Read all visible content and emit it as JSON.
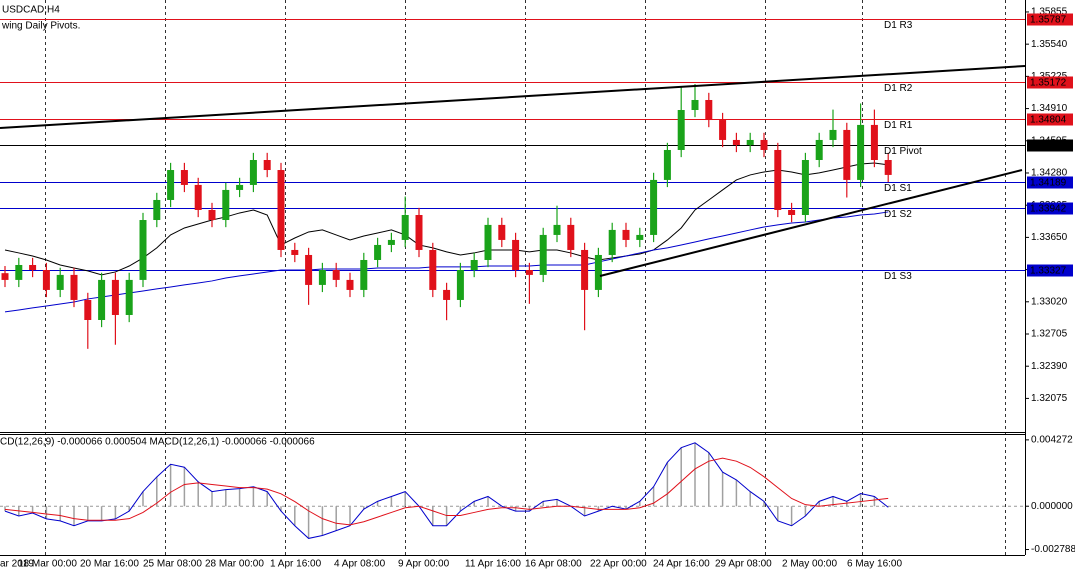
{
  "chart_data": [
    {
      "type": "candlestick",
      "title": "USDCAD,H4",
      "subtitle": "wing Daily Pivots.",
      "up_color": "#1aa31a",
      "down_color": "#e0111b",
      "open": [
        1.333,
        1.33234,
        1.3338,
        1.33331,
        1.33136,
        1.33283,
        1.33038,
        1.32842,
        1.33234,
        1.32891,
        1.33234,
        1.3382,
        1.34016,
        1.34309,
        1.34163,
        1.33918,
        1.3382,
        1.34114,
        1.34163,
        1.34407,
        1.34309,
        1.33527,
        1.33478,
        1.33185,
        1.33331,
        1.33234,
        1.33136,
        1.33429,
        1.33576,
        1.33625,
        1.33869,
        1.33527,
        1.33136,
        1.33038,
        1.33331,
        1.33429,
        1.33772,
        1.33625,
        1.33331,
        1.33283,
        1.33674,
        1.33772,
        1.33527,
        1.33136,
        1.33478,
        1.33723,
        1.33625,
        1.33674,
        1.34212,
        1.34505,
        1.34896,
        1.34994,
        1.34798,
        1.34603,
        1.34554,
        1.34603,
        1.34505,
        1.33918,
        1.33869,
        1.34407,
        1.34603,
        1.34701,
        1.34212,
        1.3475,
        1.34407
      ],
      "high": [
        1.3337,
        1.3345,
        1.3345,
        1.33401,
        1.33353,
        1.33353,
        1.33108,
        1.33304,
        1.33304,
        1.33304,
        1.3389,
        1.34086,
        1.34379,
        1.34379,
        1.34233,
        1.33988,
        1.34184,
        1.34233,
        1.34477,
        1.34477,
        1.34379,
        1.33597,
        1.33548,
        1.33401,
        1.33401,
        1.33304,
        1.33499,
        1.33646,
        1.33695,
        1.3405,
        1.33939,
        1.33597,
        1.33206,
        1.33401,
        1.33499,
        1.33842,
        1.33842,
        1.33695,
        1.33401,
        1.33744,
        1.3396,
        1.33842,
        1.33597,
        1.33548,
        1.33793,
        1.33793,
        1.33744,
        1.34282,
        1.34575,
        1.3512,
        1.3515,
        1.35064,
        1.34868,
        1.34673,
        1.34673,
        1.34673,
        1.34575,
        1.33988,
        1.34477,
        1.34673,
        1.349,
        1.34771,
        1.3496,
        1.349,
        1.34477
      ],
      "low": [
        1.33164,
        1.33164,
        1.33261,
        1.33066,
        1.33066,
        1.32968,
        1.3256,
        1.32772,
        1.326,
        1.32821,
        1.33164,
        1.3375,
        1.33946,
        1.34093,
        1.33848,
        1.3375,
        1.3375,
        1.34044,
        1.34093,
        1.34239,
        1.33457,
        1.33408,
        1.3299,
        1.33115,
        1.33164,
        1.33066,
        1.33066,
        1.33359,
        1.33506,
        1.33555,
        1.33457,
        1.33066,
        1.3284,
        1.32968,
        1.33261,
        1.33359,
        1.33555,
        1.33261,
        1.33,
        1.33213,
        1.33604,
        1.33457,
        1.32742,
        1.33066,
        1.33408,
        1.33555,
        1.33555,
        1.33604,
        1.34142,
        1.34435,
        1.34826,
        1.34728,
        1.34533,
        1.34484,
        1.34484,
        1.34435,
        1.33848,
        1.33799,
        1.33799,
        1.34337,
        1.34533,
        1.3404,
        1.34142,
        1.34337,
        1.34191
      ],
      "close": [
        1.33234,
        1.3338,
        1.33331,
        1.33136,
        1.33283,
        1.33038,
        1.32842,
        1.33234,
        1.32891,
        1.33234,
        1.3382,
        1.34016,
        1.34309,
        1.34163,
        1.33918,
        1.3382,
        1.34114,
        1.34163,
        1.34407,
        1.34309,
        1.33527,
        1.33478,
        1.33185,
        1.33331,
        1.33234,
        1.33136,
        1.33429,
        1.33576,
        1.33625,
        1.33869,
        1.33527,
        1.33136,
        1.33038,
        1.33331,
        1.33429,
        1.33772,
        1.33625,
        1.33331,
        1.33283,
        1.33674,
        1.33772,
        1.33527,
        1.33136,
        1.33478,
        1.33723,
        1.33625,
        1.33674,
        1.34212,
        1.34505,
        1.34896,
        1.34994,
        1.34798,
        1.34603,
        1.34554,
        1.34603,
        1.34505,
        1.33918,
        1.33869,
        1.34407,
        1.34603,
        1.34701,
        1.34212,
        1.3475,
        1.34407,
        1.34261
      ],
      "series": [
        {
          "color": "#000000",
          "values": [
            1.33527,
            1.33498,
            1.33468,
            1.33429,
            1.3338,
            1.33351,
            1.33322,
            1.33283,
            1.33312,
            1.3337,
            1.33449,
            1.33547,
            1.33674,
            1.33742,
            1.33781,
            1.3382,
            1.3385,
            1.33889,
            1.33918,
            1.33869,
            1.33576,
            1.33644,
            1.33703,
            1.33723,
            1.33674,
            1.33625,
            1.33664,
            1.33693,
            1.33723,
            1.33674,
            1.33576,
            1.33547,
            1.33508,
            1.33478,
            1.33498,
            1.33527,
            1.33527,
            1.33527,
            1.33508,
            1.33527,
            1.33527,
            1.33498,
            1.33459,
            1.33429,
            1.33449,
            1.33468,
            1.33488,
            1.33527,
            1.33625,
            1.33742,
            1.33918,
            1.34016,
            1.34114,
            1.34212,
            1.34261,
            1.3429,
            1.34309,
            1.3429,
            1.34261,
            1.34281,
            1.34309,
            1.34339,
            1.34368,
            1.34378,
            1.34359
          ]
        },
        {
          "color": "#0000cc",
          "values": [
            1.32921,
            1.3294,
            1.3296,
            1.32979,
            1.32999,
            1.33018,
            1.33048,
            1.33067,
            1.33087,
            1.33106,
            1.33126,
            1.33146,
            1.33165,
            1.33185,
            1.33204,
            1.33224,
            1.33253,
            1.33273,
            1.33292,
            1.33312,
            1.33331,
            1.33331,
            1.33331,
            1.33341,
            1.33341,
            1.33341,
            1.33341,
            1.33351,
            1.33351,
            1.33351,
            1.33351,
            1.33361,
            1.33361,
            1.33361,
            1.33361,
            1.3337,
            1.3337,
            1.3337,
            1.3337,
            1.3338,
            1.3338,
            1.3338,
            1.3338,
            1.3341,
            1.33439,
            1.33468,
            1.33498,
            1.33527,
            1.33547,
            1.33576,
            1.33605,
            1.33635,
            1.33664,
            1.33693,
            1.33723,
            1.33752,
            1.33772,
            1.33791,
            1.33801,
            1.3382,
            1.3384,
            1.3385,
            1.33869,
            1.33879,
            1.33899
          ]
        }
      ],
      "levels": [
        {
          "name": "D1 R3",
          "value": 1.35787,
          "color": "#e0111b"
        },
        {
          "name": "D1 R2",
          "value": 1.35172,
          "color": "#e0111b"
        },
        {
          "name": "D1 R1",
          "value": 1.34804,
          "color": "#e0111b"
        },
        {
          "name": "D1 Pivot",
          "value": 1.34557,
          "color": "#000000"
        },
        {
          "name": "D1 S1",
          "value": 1.34189,
          "color": "#0000cc"
        },
        {
          "name": "D1 S2",
          "value": 1.33942,
          "color": "#0000cc"
        },
        {
          "name": "D1 S3",
          "value": 1.33327,
          "color": "#0000cc"
        }
      ],
      "ylim": [
        1.31766,
        1.35972
      ],
      "yticks": [
        {
          "value": 1.35855,
          "label": "1.35855"
        },
        {
          "value": 1.3554,
          "label": "1.35540"
        },
        {
          "value": 1.35225,
          "label": "1.35225"
        },
        {
          "value": 1.3491,
          "label": "1.34910"
        },
        {
          "value": 1.34595,
          "label": "1.34595"
        },
        {
          "value": 1.3428,
          "label": "1.34280"
        },
        1.33965,
        {
          "value": 1.3365,
          "label": "1.33650"
        },
        1.33335,
        {
          "value": 1.3302,
          "label": "1.33020"
        },
        1.32705,
        {
          "value": 1.3239,
          "label": "1.32390"
        },
        1.32075
      ],
      "time_labels": [
        "ar 2019",
        "18 Mar 00:00",
        "20 Mar 16:00",
        "25 Mar 08:00",
        "28 Mar 00:00",
        "1 Apr 16:00",
        "4 Apr 08:00",
        "9 Apr 00:00",
        "11 Apr 16:00",
        "16 Apr 08:00",
        "22 Apr 00:00",
        "24 Apr 16:00",
        "29 Apr 08:00",
        "2 May 00:00",
        "6 May 16:00"
      ]
    },
    {
      "type": "macd",
      "title": "CD(12,26,9) -0.000066 0.000504 MACD(12,26,1) -0.000066 -0.000066",
      "histogram_color": "#a0a0a0",
      "series": [
        {
          "color": "#0000cc",
          "values": [
            -0.000314,
            -0.000628,
            -0.00044,
            -0.000816,
            -0.000942,
            -0.001256,
            -0.000942,
            -0.000942,
            -0.000816,
            -0.000314,
            0.000942,
            0.001884,
            0.0027,
            0.002512,
            0.00157,
            0.000942,
            0.001068,
            0.00113,
            0.001256,
            0.000942,
            -0.000314,
            -0.001256,
            -0.002072,
            -0.001884,
            -0.00157,
            -0.001256,
            -0.000188,
            0.000314,
            0.000628,
            0.000942,
            0,
            -0.001256,
            -0.001256,
            -0.000314,
            0.000314,
            0.000628,
            0,
            -0.000314,
            -0.000314,
            0.000314,
            0.00044,
            0,
            -0.000628,
            -0.000314,
            0,
            -0.000188,
            0.000314,
            0.001256,
            0.002826,
            0.003768,
            0.004082,
            0.003454,
            0.002198,
            0.001696,
            0.000942,
            0.000314,
            -0.000942,
            -0.001256,
            -0.000628,
            0.000314,
            0.000628,
            0.000314,
            0.000816,
            0.000628,
            -6.6e-05
          ]
        },
        {
          "color": "#e0111b",
          "values": [
            -0.0002,
            -0.0003,
            -0.0004,
            -0.0005,
            -0.0006,
            -0.0008,
            -0.0009,
            -0.0009,
            -0.0009,
            -0.0008,
            -0.0004,
            0.0002,
            0.0009,
            0.0014,
            0.0015,
            0.0014,
            0.0013,
            0.0012,
            0.0012,
            0.0011,
            0.0008,
            0.0003,
            -0.0003,
            -0.0008,
            -0.0011,
            -0.0012,
            -0.001,
            -0.0007,
            -0.0004,
            -0.0001,
            0,
            -0.0003,
            -0.0006,
            -0.0006,
            -0.0004,
            -0.0002,
            -0.0001,
            -0.0001,
            -0.0002,
            -0.0001,
            0,
            0,
            -0.0001,
            -0.0002,
            -0.0002,
            -0.0002,
            -0.0001,
            0.0002,
            0.0008,
            0.0016,
            0.0024,
            0.0029,
            0.0031,
            0.0029,
            0.0025,
            0.0019,
            0.0012,
            0.0005,
            0.0001,
            0,
            0.0001,
            0.0002,
            0.0003,
            0.0004,
            0.000504
          ]
        }
      ],
      "ylim": [
        -0.003141,
        0.004586
      ],
      "yticks": [
        0.004272,
        {
          "value": 0,
          "label": "0.000000"
        },
        -0.002788
      ]
    }
  ]
}
